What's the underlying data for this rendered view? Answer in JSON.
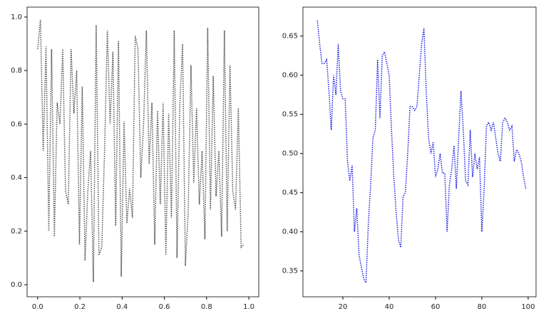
{
  "chart_data": [
    {
      "type": "line",
      "line_style": "dotted",
      "color": "#555555",
      "x": [
        0,
        0.0132,
        0.0264,
        0.0396,
        0.0528,
        0.066,
        0.0792,
        0.0924,
        0.1056,
        0.1188,
        0.132,
        0.1452,
        0.1584,
        0.1716,
        0.1848,
        0.198,
        0.2112,
        0.2244,
        0.2376,
        0.2508,
        0.264,
        0.2772,
        0.2904,
        0.3036,
        0.3168,
        0.33,
        0.3432,
        0.3564,
        0.3696,
        0.3828,
        0.396,
        0.4092,
        0.4224,
        0.4356,
        0.4488,
        0.462,
        0.4752,
        0.4884,
        0.5016,
        0.5148,
        0.528,
        0.5412,
        0.5544,
        0.5676,
        0.5808,
        0.594,
        0.6072,
        0.6204,
        0.6336,
        0.6468,
        0.66,
        0.6732,
        0.6864,
        0.6996,
        0.7128,
        0.726,
        0.7392,
        0.7524,
        0.7656,
        0.7788,
        0.792,
        0.8052,
        0.8184,
        0.8316,
        0.8448,
        0.858,
        0.8712,
        0.8844,
        0.8976,
        0.9108,
        0.924,
        0.9372,
        0.9504,
        0.9636,
        0.9768
      ],
      "values": [
        0.88,
        0.99,
        0.5,
        0.89,
        0.2,
        0.88,
        0.18,
        0.68,
        0.6,
        0.88,
        0.35,
        0.3,
        0.88,
        0.64,
        0.8,
        0.15,
        0.74,
        0.09,
        0.35,
        0.5,
        0.01,
        0.97,
        0.11,
        0.14,
        0.5,
        0.95,
        0.6,
        0.87,
        0.22,
        0.91,
        0.03,
        0.61,
        0.23,
        0.36,
        0.25,
        0.93,
        0.88,
        0.4,
        0.6,
        0.95,
        0.45,
        0.68,
        0.15,
        0.65,
        0.3,
        0.68,
        0.11,
        0.64,
        0.25,
        0.95,
        0.1,
        0.67,
        0.9,
        0.07,
        0.27,
        0.82,
        0.38,
        0.66,
        0.3,
        0.5,
        0.17,
        0.96,
        0.28,
        0.78,
        0.33,
        0.5,
        0.18,
        0.95,
        0.2,
        0.82,
        0.35,
        0.28,
        0.66,
        0.14,
        0.15
      ],
      "xlim": [
        -0.05,
        1.047
      ],
      "ylim": [
        -0.045,
        1.037
      ],
      "xticks": [
        {
          "value": 0,
          "label": "0.0"
        },
        0.2,
        0.4,
        0.6,
        0.8,
        {
          "value": 1,
          "label": "1.0"
        }
      ],
      "yticks": [
        {
          "value": 0,
          "label": "0.0"
        },
        0.2,
        0.4,
        0.6,
        0.8,
        {
          "value": 1,
          "label": "1.0"
        }
      ]
    },
    {
      "type": "line",
      "line_style": "dotted",
      "color": "#1f1fe6",
      "x": [
        9,
        10,
        11,
        12,
        13,
        14,
        15,
        16,
        17,
        18,
        19,
        20,
        21,
        22,
        23,
        24,
        25,
        26,
        27,
        28,
        29,
        30,
        31,
        32,
        33,
        34,
        35,
        36,
        37,
        38,
        39,
        40,
        41,
        42,
        43,
        44,
        45,
        46,
        47,
        48,
        49,
        50,
        51,
        52,
        53,
        54,
        55,
        56,
        57,
        58,
        59,
        60,
        61,
        62,
        63,
        64,
        65,
        66,
        67,
        68,
        69,
        70,
        71,
        72,
        73,
        74,
        75,
        76,
        77,
        78,
        79,
        80,
        81,
        82,
        83,
        84,
        85,
        86,
        87,
        88,
        89,
        90,
        91,
        92,
        93,
        94,
        95,
        96,
        97,
        98,
        99
      ],
      "values": [
        0.67,
        0.64,
        0.615,
        0.615,
        0.62,
        0.58,
        0.53,
        0.6,
        0.575,
        0.64,
        0.58,
        0.57,
        0.57,
        0.49,
        0.465,
        0.485,
        0.4,
        0.43,
        0.37,
        0.355,
        0.34,
        0.335,
        0.41,
        0.46,
        0.52,
        0.53,
        0.62,
        0.545,
        0.625,
        0.63,
        0.615,
        0.6,
        0.53,
        0.47,
        0.425,
        0.39,
        0.38,
        0.445,
        0.45,
        0.5,
        0.56,
        0.56,
        0.555,
        0.56,
        0.6,
        0.64,
        0.66,
        0.58,
        0.52,
        0.5,
        0.515,
        0.47,
        0.48,
        0.5,
        0.475,
        0.475,
        0.4,
        0.46,
        0.48,
        0.51,
        0.455,
        0.52,
        0.58,
        0.53,
        0.465,
        0.46,
        0.53,
        0.47,
        0.5,
        0.48,
        0.495,
        0.4,
        0.455,
        0.535,
        0.54,
        0.53,
        0.54,
        0.52,
        0.5,
        0.49,
        0.54,
        0.545,
        0.54,
        0.53,
        0.535,
        0.49,
        0.505,
        0.5,
        0.49,
        0.47,
        0.455
      ],
      "xlim": [
        2.77,
        103.4
      ],
      "ylim": [
        0.317,
        0.687
      ],
      "xticks": [
        20,
        40,
        60,
        80,
        100
      ],
      "yticks": [
        0.35,
        {
          "value": 0.4,
          "label": "0.40"
        },
        0.45,
        {
          "value": 0.5,
          "label": "0.50"
        },
        0.55,
        {
          "value": 0.6,
          "label": "0.60"
        },
        0.65
      ]
    }
  ]
}
